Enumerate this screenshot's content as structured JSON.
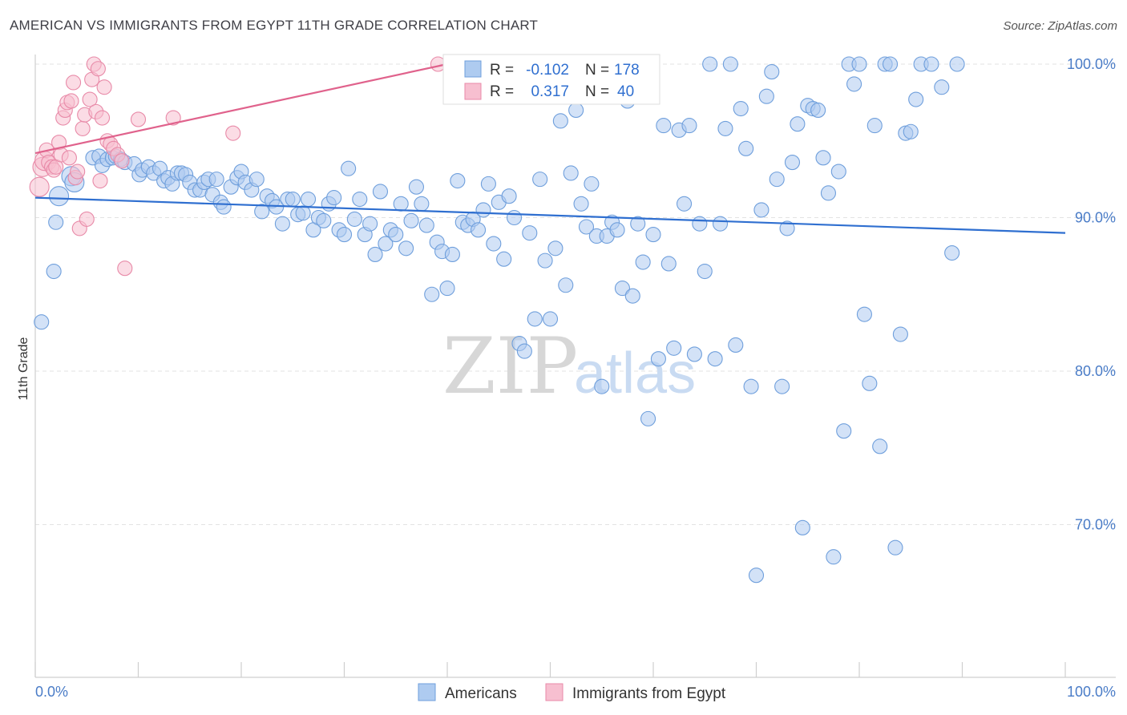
{
  "header": {
    "title": "AMERICAN VS IMMIGRANTS FROM EGYPT 11TH GRADE CORRELATION CHART",
    "source": "Source: ZipAtlas.com"
  },
  "watermark": {
    "zip": "ZIP",
    "atlas": "atlas"
  },
  "colors": {
    "blue_fill": "#aecbf0",
    "blue_stroke": "#6f9fdc",
    "blue_line": "#2f6fd0",
    "pink_fill": "#f7bfd0",
    "pink_stroke": "#e88aa8",
    "pink_line": "#e0628c",
    "grid": "#e3e3e3",
    "axis_text": "#4a7cc7"
  },
  "legend": {
    "rows": [
      {
        "r_label": "R = ",
        "r_value": "-0.102",
        "n_label": "N = ",
        "n_value": "178"
      },
      {
        "r_label": "R = ",
        "r_value": "0.317",
        "n_label": "N = ",
        "n_value": "40"
      }
    ]
  },
  "chart_data": {
    "type": "scatter",
    "title": "AMERICAN VS IMMIGRANTS FROM EGYPT 11TH GRADE CORRELATION CHART",
    "xlabel": "",
    "ylabel": "11th Grade",
    "xlim": [
      0,
      100
    ],
    "ylim": [
      59.5,
      101.5
    ],
    "x_tick_labels": [
      "0.0%",
      "100.0%"
    ],
    "y_ticks": [
      70,
      80,
      90,
      100
    ],
    "y_tick_labels": [
      "70.0%",
      "80.0%",
      "90.0%",
      "100.0%"
    ],
    "series": [
      {
        "name": "Americans",
        "r": -0.102,
        "n": 178,
        "trend": {
          "x0": 0,
          "y0": 91.3,
          "x1": 100,
          "y1": 89.0
        },
        "points": [
          [
            0.6,
            83.2
          ],
          [
            1.8,
            86.5
          ],
          [
            2.0,
            89.7
          ],
          [
            2.3,
            91.4
          ],
          [
            3.5,
            92.7
          ],
          [
            3.8,
            92.3
          ],
          [
            5.6,
            93.9
          ],
          [
            6.2,
            94.0
          ],
          [
            6.5,
            93.4
          ],
          [
            7.0,
            93.8
          ],
          [
            7.5,
            93.9
          ],
          [
            7.8,
            94.0
          ],
          [
            8.3,
            93.8
          ],
          [
            8.7,
            93.6
          ],
          [
            9.6,
            93.5
          ],
          [
            10.1,
            92.8
          ],
          [
            10.4,
            93.1
          ],
          [
            11.0,
            93.3
          ],
          [
            11.5,
            92.9
          ],
          [
            12.1,
            93.2
          ],
          [
            12.5,
            92.4
          ],
          [
            12.9,
            92.6
          ],
          [
            13.3,
            92.2
          ],
          [
            13.8,
            92.9
          ],
          [
            14.2,
            92.9
          ],
          [
            14.6,
            92.8
          ],
          [
            15.0,
            92.3
          ],
          [
            15.5,
            91.8
          ],
          [
            16.0,
            91.8
          ],
          [
            16.4,
            92.3
          ],
          [
            16.8,
            92.5
          ],
          [
            17.2,
            91.5
          ],
          [
            17.6,
            92.5
          ],
          [
            18.0,
            91.0
          ],
          [
            18.3,
            90.7
          ],
          [
            19.0,
            92.0
          ],
          [
            19.6,
            92.6
          ],
          [
            20.0,
            93.0
          ],
          [
            20.4,
            92.3
          ],
          [
            21.0,
            91.8
          ],
          [
            21.5,
            92.5
          ],
          [
            22.0,
            90.4
          ],
          [
            22.5,
            91.4
          ],
          [
            23.0,
            91.1
          ],
          [
            23.4,
            90.7
          ],
          [
            24.0,
            89.6
          ],
          [
            24.5,
            91.2
          ],
          [
            25.0,
            91.2
          ],
          [
            25.5,
            90.2
          ],
          [
            26.0,
            90.3
          ],
          [
            26.5,
            91.2
          ],
          [
            27.0,
            89.2
          ],
          [
            27.5,
            90.0
          ],
          [
            28.0,
            89.8
          ],
          [
            28.5,
            90.9
          ],
          [
            29.0,
            91.3
          ],
          [
            29.5,
            89.2
          ],
          [
            30.0,
            88.9
          ],
          [
            30.4,
            93.2
          ],
          [
            31.0,
            89.9
          ],
          [
            31.5,
            91.2
          ],
          [
            32.0,
            88.9
          ],
          [
            32.5,
            89.6
          ],
          [
            33.0,
            87.6
          ],
          [
            33.5,
            91.7
          ],
          [
            34.0,
            88.3
          ],
          [
            34.5,
            89.2
          ],
          [
            35.0,
            88.9
          ],
          [
            35.5,
            90.9
          ],
          [
            36.0,
            88.0
          ],
          [
            36.5,
            89.8
          ],
          [
            37.0,
            92.0
          ],
          [
            37.5,
            90.9
          ],
          [
            38.0,
            89.5
          ],
          [
            38.5,
            85.0
          ],
          [
            39.0,
            88.4
          ],
          [
            39.5,
            87.8
          ],
          [
            40.0,
            85.4
          ],
          [
            40.5,
            87.6
          ],
          [
            41.0,
            92.4
          ],
          [
            41.5,
            89.7
          ],
          [
            42.0,
            89.5
          ],
          [
            42.5,
            89.9
          ],
          [
            43.0,
            89.2
          ],
          [
            43.5,
            90.5
          ],
          [
            44.0,
            92.2
          ],
          [
            44.5,
            88.3
          ],
          [
            45.0,
            91.0
          ],
          [
            45.5,
            87.3
          ],
          [
            46.0,
            91.4
          ],
          [
            46.5,
            90.0
          ],
          [
            47.0,
            81.8
          ],
          [
            47.5,
            81.3
          ],
          [
            48.0,
            89.0
          ],
          [
            48.5,
            83.4
          ],
          [
            49.0,
            92.5
          ],
          [
            49.5,
            87.2
          ],
          [
            50.0,
            83.4
          ],
          [
            50.5,
            88.0
          ],
          [
            51.0,
            96.3
          ],
          [
            51.5,
            85.6
          ],
          [
            52.0,
            92.9
          ],
          [
            52.5,
            97.0
          ],
          [
            53.0,
            90.9
          ],
          [
            53.5,
            89.4
          ],
          [
            54.0,
            92.2
          ],
          [
            54.5,
            88.8
          ],
          [
            55.0,
            79.0
          ],
          [
            55.5,
            88.8
          ],
          [
            56.0,
            89.7
          ],
          [
            56.5,
            89.2
          ],
          [
            57.0,
            85.4
          ],
          [
            57.5,
            97.6
          ],
          [
            58.0,
            84.9
          ],
          [
            58.5,
            89.6
          ],
          [
            59.0,
            87.1
          ],
          [
            59.5,
            76.9
          ],
          [
            60.0,
            88.9
          ],
          [
            60.5,
            80.8
          ],
          [
            61.0,
            96.0
          ],
          [
            61.5,
            87.0
          ],
          [
            62.0,
            81.5
          ],
          [
            62.5,
            95.7
          ],
          [
            63.0,
            90.9
          ],
          [
            63.5,
            96.0
          ],
          [
            64.0,
            81.1
          ],
          [
            64.5,
            89.6
          ],
          [
            65.0,
            86.5
          ],
          [
            65.5,
            100.0
          ],
          [
            66.0,
            80.8
          ],
          [
            66.5,
            89.6
          ],
          [
            67.0,
            95.8
          ],
          [
            67.5,
            100.0
          ],
          [
            68.0,
            81.7
          ],
          [
            68.5,
            97.1
          ],
          [
            69.0,
            94.5
          ],
          [
            69.5,
            79.0
          ],
          [
            70.0,
            66.7
          ],
          [
            70.5,
            90.5
          ],
          [
            71.0,
            97.9
          ],
          [
            71.5,
            99.5
          ],
          [
            72.0,
            92.5
          ],
          [
            72.5,
            79.0
          ],
          [
            73.0,
            89.3
          ],
          [
            73.5,
            93.6
          ],
          [
            74.0,
            96.1
          ],
          [
            74.5,
            69.8
          ],
          [
            75.0,
            97.3
          ],
          [
            75.5,
            97.1
          ],
          [
            76.0,
            97.0
          ],
          [
            76.5,
            93.9
          ],
          [
            77.0,
            91.6
          ],
          [
            77.5,
            67.9
          ],
          [
            78.0,
            93.0
          ],
          [
            78.5,
            76.1
          ],
          [
            79.0,
            100.0
          ],
          [
            79.5,
            98.7
          ],
          [
            80.0,
            100.0
          ],
          [
            80.5,
            83.7
          ],
          [
            81.0,
            79.2
          ],
          [
            81.5,
            96.0
          ],
          [
            82.0,
            75.1
          ],
          [
            82.5,
            100.0
          ],
          [
            83.0,
            100.0
          ],
          [
            83.5,
            68.5
          ],
          [
            84.0,
            82.4
          ],
          [
            84.5,
            95.5
          ],
          [
            85.0,
            95.6
          ],
          [
            85.5,
            97.7
          ],
          [
            86.0,
            100.0
          ],
          [
            87.0,
            100.0
          ],
          [
            88.0,
            98.5
          ],
          [
            89.0,
            87.7
          ],
          [
            89.5,
            100.0
          ]
        ]
      },
      {
        "name": "Immigrants from Egypt",
        "r": 0.317,
        "n": 40,
        "trend": {
          "x0": 0,
          "y0": 94.2,
          "x1": 40,
          "y1": 100.0
        },
        "points": [
          [
            0.4,
            92.0
          ],
          [
            0.7,
            93.3
          ],
          [
            0.9,
            93.7
          ],
          [
            1.1,
            94.4
          ],
          [
            1.3,
            93.6
          ],
          [
            1.6,
            93.3
          ],
          [
            1.8,
            93.1
          ],
          [
            2.0,
            93.3
          ],
          [
            2.3,
            94.9
          ],
          [
            2.5,
            94.1
          ],
          [
            2.7,
            96.5
          ],
          [
            2.9,
            97.0
          ],
          [
            3.1,
            97.5
          ],
          [
            3.3,
            93.9
          ],
          [
            3.5,
            97.6
          ],
          [
            3.7,
            98.8
          ],
          [
            3.9,
            92.6
          ],
          [
            4.1,
            93.0
          ],
          [
            4.3,
            89.3
          ],
          [
            4.6,
            95.8
          ],
          [
            4.8,
            96.7
          ],
          [
            5.0,
            89.9
          ],
          [
            5.3,
            97.7
          ],
          [
            5.5,
            99.0
          ],
          [
            5.7,
            100.0
          ],
          [
            5.9,
            96.9
          ],
          [
            6.1,
            99.7
          ],
          [
            6.3,
            92.4
          ],
          [
            6.5,
            96.5
          ],
          [
            6.7,
            98.5
          ],
          [
            7.0,
            95.0
          ],
          [
            7.3,
            94.8
          ],
          [
            7.6,
            94.5
          ],
          [
            8.0,
            94.1
          ],
          [
            8.4,
            93.7
          ],
          [
            8.7,
            86.7
          ],
          [
            10.0,
            96.4
          ],
          [
            13.4,
            96.5
          ],
          [
            19.2,
            95.5
          ],
          [
            39.1,
            100.0
          ]
        ]
      }
    ]
  },
  "bottom_legend": [
    "Americans",
    "Immigrants from Egypt"
  ]
}
